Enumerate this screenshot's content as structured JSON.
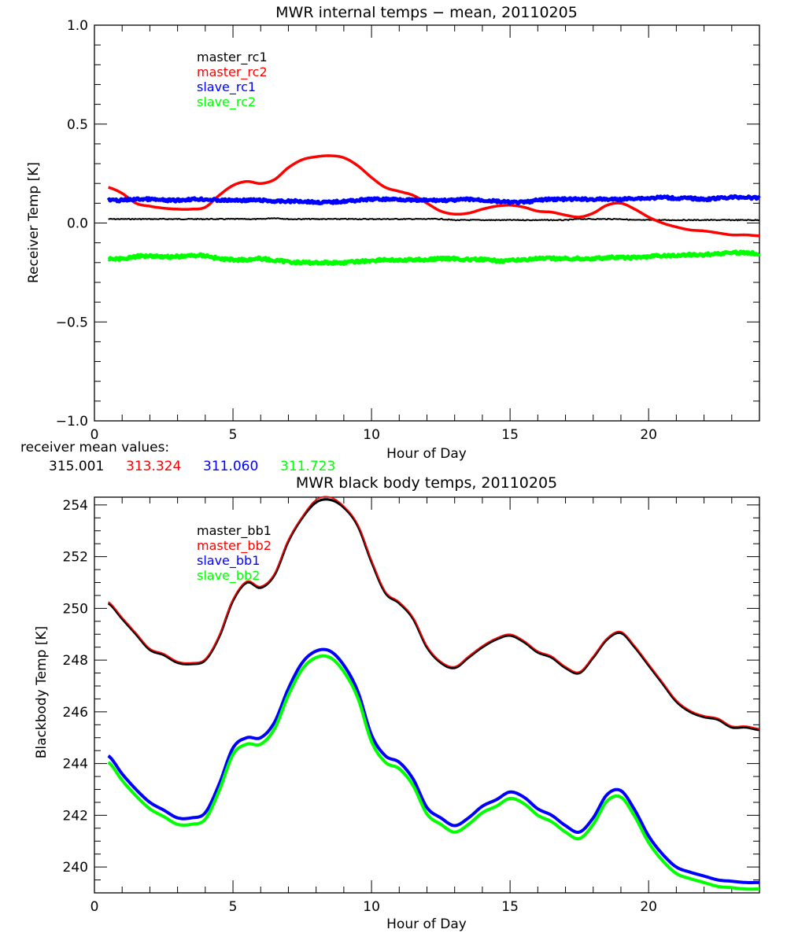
{
  "chart_data": [
    {
      "type": "line",
      "title": "MWR internal temps − mean, 20110205",
      "xlabel": "Hour of Day",
      "ylabel": "Receiver Temp [K]",
      "xlim": [
        0,
        24
      ],
      "ylim": [
        -1.0,
        1.0
      ],
      "xticks": [
        "0",
        "5",
        "10",
        "15",
        "20"
      ],
      "xtick_values": [
        0,
        5,
        10,
        15,
        20
      ],
      "yticks": [
        "−1.0",
        "−0.5",
        "0.0",
        "0.5",
        "1.0"
      ],
      "ytick_values": [
        -1.0,
        -0.5,
        0.0,
        0.5,
        1.0
      ],
      "legend_position": "upper-left-inside",
      "x": [
        0.5,
        1,
        1.5,
        2,
        2.5,
        3,
        3.5,
        4,
        4.5,
        5,
        5.5,
        6,
        6.5,
        7,
        7.5,
        8,
        8.5,
        9,
        9.5,
        10,
        10.5,
        11,
        11.5,
        12,
        12.5,
        13,
        13.5,
        14,
        14.5,
        15,
        15.5,
        16,
        16.5,
        17,
        17.5,
        18,
        18.5,
        19,
        19.5,
        20,
        20.5,
        21,
        21.5,
        22,
        22.5,
        23,
        23.5,
        24
      ],
      "series": [
        {
          "name": "master_rc1",
          "color": "#000000",
          "values": [
            0.02,
            0.02,
            0.02,
            0.02,
            0.02,
            0.02,
            0.02,
            0.02,
            0.02,
            0.02,
            0.02,
            0.02,
            0.025,
            0.02,
            0.02,
            0.02,
            0.02,
            0.02,
            0.02,
            0.02,
            0.02,
            0.02,
            0.02,
            0.02,
            0.02,
            0.015,
            0.015,
            0.015,
            0.015,
            0.015,
            0.015,
            0.015,
            0.015,
            0.015,
            0.02,
            0.02,
            0.02,
            0.02,
            0.015,
            0.015,
            0.015,
            0.015,
            0.015,
            0.015,
            0.015,
            0.015,
            0.015,
            0.015
          ]
        },
        {
          "name": "master_rc2",
          "color": "#ff0000",
          "values": [
            0.18,
            0.15,
            0.1,
            0.085,
            0.075,
            0.07,
            0.07,
            0.08,
            0.14,
            0.19,
            0.21,
            0.2,
            0.22,
            0.28,
            0.32,
            0.335,
            0.34,
            0.33,
            0.29,
            0.23,
            0.18,
            0.16,
            0.14,
            0.1,
            0.06,
            0.045,
            0.05,
            0.07,
            0.085,
            0.09,
            0.08,
            0.06,
            0.055,
            0.04,
            0.03,
            0.05,
            0.09,
            0.1,
            0.07,
            0.03,
            0.0,
            -0.02,
            -0.035,
            -0.04,
            -0.05,
            -0.06,
            -0.06,
            -0.065
          ]
        },
        {
          "name": "slave_rc1",
          "color": "#0000ff",
          "values": [
            0.115,
            0.115,
            0.12,
            0.12,
            0.115,
            0.115,
            0.12,
            0.12,
            0.115,
            0.115,
            0.115,
            0.115,
            0.11,
            0.11,
            0.11,
            0.105,
            0.105,
            0.11,
            0.115,
            0.12,
            0.12,
            0.12,
            0.115,
            0.115,
            0.115,
            0.115,
            0.12,
            0.115,
            0.11,
            0.105,
            0.105,
            0.115,
            0.12,
            0.12,
            0.12,
            0.12,
            0.12,
            0.12,
            0.125,
            0.125,
            0.13,
            0.125,
            0.125,
            0.12,
            0.125,
            0.13,
            0.13,
            0.125
          ]
        },
        {
          "name": "slave_rc2",
          "color": "#00ff00",
          "values": [
            -0.18,
            -0.18,
            -0.17,
            -0.165,
            -0.17,
            -0.17,
            -0.165,
            -0.165,
            -0.18,
            -0.185,
            -0.185,
            -0.18,
            -0.19,
            -0.195,
            -0.2,
            -0.2,
            -0.2,
            -0.2,
            -0.195,
            -0.19,
            -0.185,
            -0.19,
            -0.185,
            -0.185,
            -0.18,
            -0.18,
            -0.185,
            -0.185,
            -0.19,
            -0.19,
            -0.185,
            -0.18,
            -0.18,
            -0.18,
            -0.18,
            -0.18,
            -0.175,
            -0.175,
            -0.175,
            -0.17,
            -0.165,
            -0.165,
            -0.16,
            -0.16,
            -0.155,
            -0.15,
            -0.15,
            -0.155
          ]
        }
      ],
      "annotation": {
        "label": "receiver mean values:",
        "values": [
          {
            "text": "315.001",
            "color": "#000000"
          },
          {
            "text": "313.324",
            "color": "#ff0000"
          },
          {
            "text": "311.060",
            "color": "#0000ff"
          },
          {
            "text": "311.723",
            "color": "#00ff00"
          }
        ]
      }
    },
    {
      "type": "line",
      "title": "MWR black body temps, 20110205",
      "xlabel": "Hour of Day",
      "ylabel": "Blackbody Temp [K]",
      "xlim": [
        0,
        24
      ],
      "ylim": [
        239.0,
        254.3
      ],
      "xticks": [
        "0",
        "5",
        "10",
        "15",
        "20"
      ],
      "xtick_values": [
        0,
        5,
        10,
        15,
        20
      ],
      "yticks": [
        "240",
        "242",
        "244",
        "246",
        "248",
        "250",
        "252",
        "254"
      ],
      "ytick_values": [
        240,
        242,
        244,
        246,
        248,
        250,
        252,
        254
      ],
      "legend_position": "upper-left-inside",
      "x": [
        0.5,
        1,
        1.5,
        2,
        2.5,
        3,
        3.5,
        4,
        4.5,
        5,
        5.5,
        6,
        6.5,
        7,
        7.5,
        8,
        8.5,
        9,
        9.5,
        10,
        10.5,
        11,
        11.5,
        12,
        12.5,
        13,
        13.5,
        14,
        14.5,
        15,
        15.5,
        16,
        16.5,
        17,
        17.5,
        18,
        18.5,
        19,
        19.5,
        20,
        20.5,
        21,
        21.5,
        22,
        22.5,
        23,
        23.5,
        24
      ],
      "series": [
        {
          "name": "master_bb1",
          "color": "#000000",
          "values": [
            250.2,
            249.6,
            249.0,
            248.4,
            248.2,
            247.9,
            247.85,
            248.0,
            248.9,
            250.3,
            251.0,
            250.8,
            251.3,
            252.6,
            253.5,
            254.1,
            254.2,
            253.9,
            253.2,
            251.8,
            250.6,
            250.2,
            249.6,
            248.5,
            247.9,
            247.7,
            248.1,
            248.5,
            248.8,
            248.95,
            248.7,
            248.3,
            248.1,
            247.7,
            247.5,
            248.1,
            248.8,
            249.05,
            248.5,
            247.8,
            247.1,
            246.4,
            246.0,
            245.8,
            245.7,
            245.4,
            245.4,
            245.3
          ]
        },
        {
          "name": "master_bb2",
          "color": "#ff0000",
          "values": [
            250.25,
            249.65,
            249.05,
            248.45,
            248.25,
            247.95,
            247.9,
            248.05,
            248.95,
            250.35,
            251.05,
            250.85,
            251.35,
            252.65,
            253.55,
            254.2,
            254.3,
            253.95,
            253.25,
            251.85,
            250.65,
            250.25,
            249.65,
            248.55,
            247.95,
            247.75,
            248.15,
            248.55,
            248.85,
            249.0,
            248.75,
            248.35,
            248.15,
            247.75,
            247.55,
            248.15,
            248.85,
            249.1,
            248.55,
            247.85,
            247.15,
            246.45,
            246.05,
            245.85,
            245.75,
            245.45,
            245.45,
            245.35
          ]
        },
        {
          "name": "slave_bb1",
          "color": "#0000ff",
          "values": [
            244.3,
            243.6,
            243.0,
            242.5,
            242.2,
            241.9,
            241.9,
            242.1,
            243.2,
            244.6,
            245.0,
            245.0,
            245.6,
            246.9,
            247.9,
            248.35,
            248.35,
            247.8,
            246.8,
            245.1,
            244.3,
            244.05,
            243.4,
            242.3,
            241.9,
            241.6,
            241.9,
            242.35,
            242.6,
            242.9,
            242.7,
            242.25,
            242.0,
            241.6,
            241.35,
            241.9,
            242.8,
            242.95,
            242.2,
            241.2,
            240.5,
            240.0,
            239.8,
            239.65,
            239.5,
            239.45,
            239.4,
            239.4
          ]
        },
        {
          "name": "slave_bb2",
          "color": "#00ff00",
          "values": [
            244.05,
            243.35,
            242.75,
            242.25,
            241.95,
            241.65,
            241.65,
            241.85,
            242.95,
            244.35,
            244.75,
            244.75,
            245.35,
            246.65,
            247.65,
            248.1,
            248.1,
            247.55,
            246.55,
            244.85,
            244.05,
            243.8,
            243.15,
            242.05,
            241.65,
            241.35,
            241.65,
            242.1,
            242.35,
            242.65,
            242.45,
            242.0,
            241.75,
            241.35,
            241.1,
            241.65,
            242.55,
            242.7,
            241.95,
            240.95,
            240.25,
            239.75,
            239.55,
            239.4,
            239.25,
            239.2,
            239.15,
            239.15
          ]
        }
      ]
    }
  ]
}
